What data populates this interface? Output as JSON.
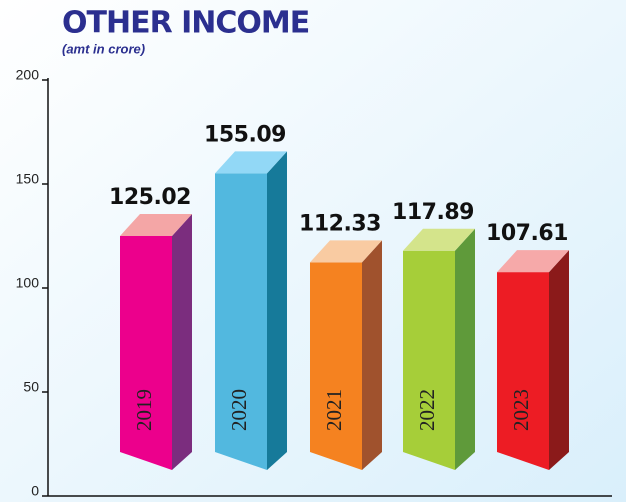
{
  "chart_data": {
    "type": "bar3d",
    "title": "OTHER INCOME",
    "subtitle": "(amt in crore)",
    "categories": [
      "2019",
      "2020",
      "2021",
      "2022",
      "2023"
    ],
    "values": [
      125.02,
      155.09,
      112.33,
      117.89,
      107.61
    ],
    "colors": [
      {
        "front": "#ec008c",
        "side": "#7b2d7e",
        "top": "#f4a6a6"
      },
      {
        "front": "#52b8df",
        "side": "#167a9a",
        "top": "#92d8f6"
      },
      {
        "front": "#f58220",
        "side": "#a0522d",
        "top": "#f9cba2"
      },
      {
        "front": "#a6ce39",
        "side": "#5f9a3a",
        "top": "#d4e48b"
      },
      {
        "front": "#ed1c24",
        "side": "#8b1a1a",
        "top": "#f6a9a9"
      }
    ],
    "ylim": [
      0,
      200
    ],
    "yticks": [
      0,
      50,
      100,
      150,
      200
    ]
  }
}
